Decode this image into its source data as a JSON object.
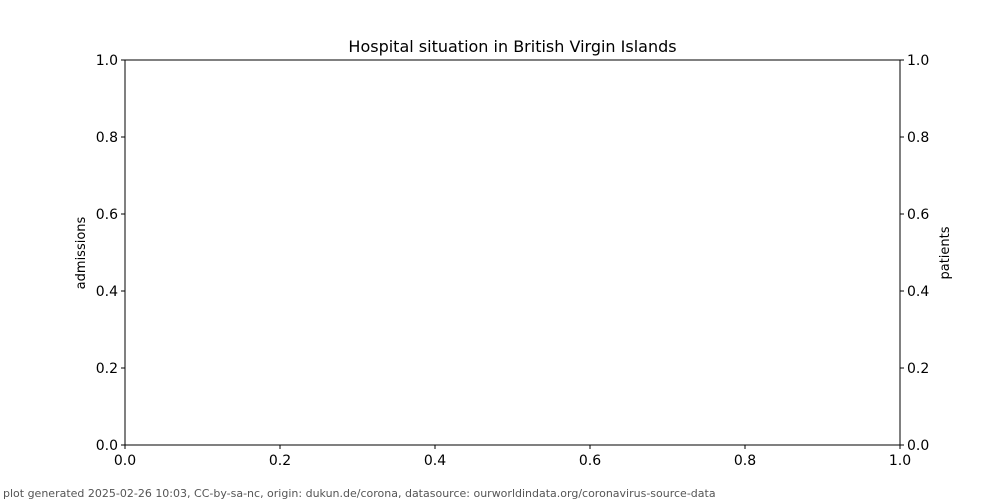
{
  "chart_data": {
    "type": "line",
    "title": "Hospital situation in British Virgin Islands",
    "ylabel_left": "admissions",
    "ylabel_right": "patients",
    "xlabel": "",
    "xlim": [
      0.0,
      1.0
    ],
    "ylim_left": [
      0.0,
      1.0
    ],
    "ylim_right": [
      0.0,
      1.0
    ],
    "x_ticks": [
      "0.0",
      "0.2",
      "0.4",
      "0.6",
      "0.8",
      "1.0"
    ],
    "y_left_ticks": [
      "0.0",
      "0.2",
      "0.4",
      "0.6",
      "0.8",
      "1.0"
    ],
    "y_right_ticks": [
      "0.0",
      "0.2",
      "0.4",
      "0.6",
      "0.8",
      "1.0"
    ],
    "series": [],
    "grid": false
  },
  "footer": {
    "text": "plot generated 2025-02-26 10:03, CC-by-sa-nc, origin: dukun.de/corona, datasource: ourworldindata.org/coronavirus-source-data"
  },
  "colors": {
    "axis": "#000000",
    "footer": "#555555",
    "background": "#ffffff"
  }
}
